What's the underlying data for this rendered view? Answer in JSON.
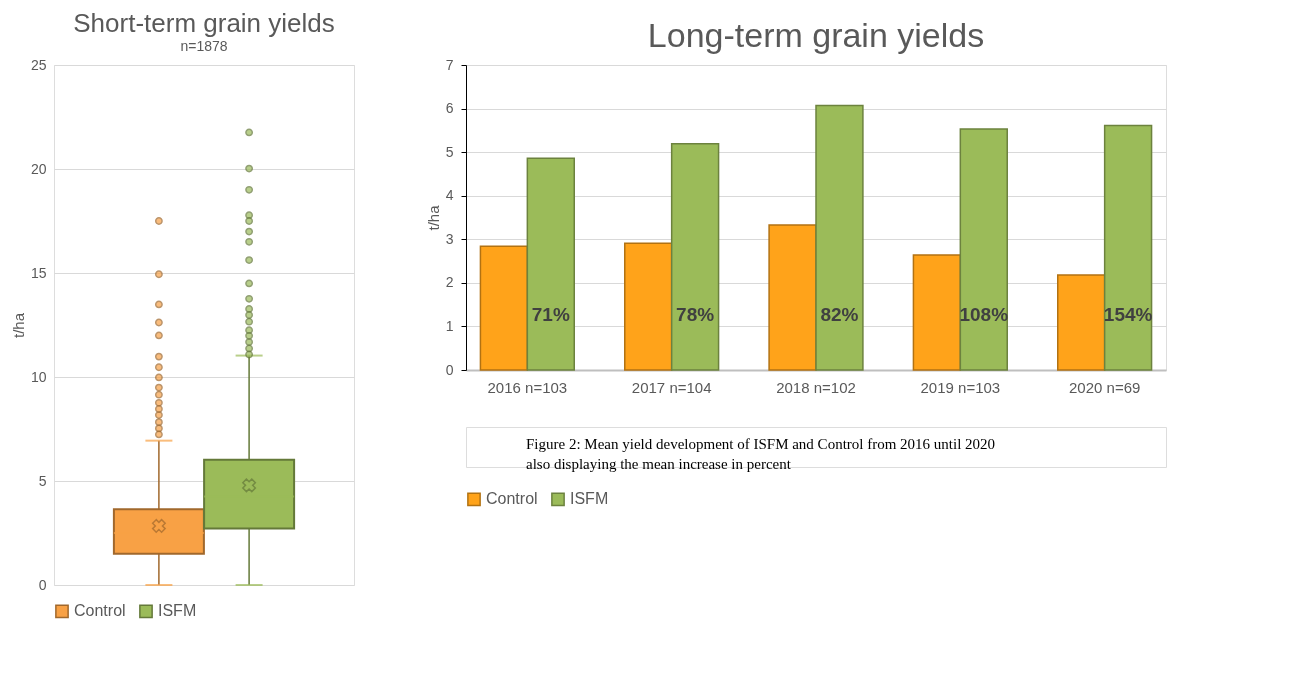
{
  "chart_data": [
    {
      "type": "box",
      "title": "Short-term grain yields",
      "subtitle": "n=1878",
      "ylabel": "t/ha",
      "categories": [
        null
      ],
      "series": [
        {
          "name": "Control",
          "color": "#f8a145",
          "boxes": [
            {
              "low": 0,
              "q1": 1.5,
              "median": 2.5,
              "q3": 3.64,
              "high": 6.94,
              "mean": 2.84,
              "outliers": [
                17.5,
                14.94,
                13.49,
                12.62,
                12.0,
                10.98,
                10.47,
                9.98,
                9.49,
                9.15,
                8.76,
                8.46,
                8.17,
                7.83,
                7.53,
                7.24
              ]
            }
          ]
        },
        {
          "name": "ISFM",
          "color": "#9bbb59",
          "boxes": [
            {
              "low": 0,
              "q1": 2.72,
              "median": 4.25,
              "q3": 6.02,
              "high": 11.03,
              "mean": 4.79,
              "outliers": [
                21.76,
                20.02,
                19.0,
                17.78,
                17.5,
                16.99,
                16.5,
                15.62,
                14.5,
                13.76,
                13.27,
                12.98,
                12.66,
                12.25,
                11.98,
                11.68,
                11.37,
                11.08
              ]
            }
          ]
        }
      ],
      "ylim": [
        0,
        25
      ],
      "yticks": [
        0,
        5,
        10,
        15,
        20,
        25
      ],
      "grid": "y",
      "legend": "bottom"
    },
    {
      "type": "bar",
      "title": "Long-term grain yields",
      "ylabel": "t/ha",
      "categories": [
        "2016 n=103",
        "2017 n=104",
        "2018 n=102",
        "2019 n=103",
        "2020 n=69"
      ],
      "series": [
        {
          "name": "Control",
          "color": "#ffa31a",
          "values": [
            2.84,
            2.91,
            3.33,
            2.64,
            2.18
          ]
        },
        {
          "name": "ISFM",
          "color": "#9bbb59",
          "values": [
            4.86,
            5.19,
            6.07,
            5.53,
            5.61
          ]
        }
      ],
      "ylim": [
        0,
        7
      ],
      "yticks": [
        0,
        1,
        2,
        3,
        4,
        5,
        6,
        7
      ],
      "grid": "y",
      "legend": "bottom",
      "annotations": [
        "71%",
        "78%",
        "82%",
        "108%",
        "154%",
        "Figure 2: Mean yield development of ISFM and Control from 2016 until 2020 also displaying the mean increase in percent"
      ]
    }
  ]
}
